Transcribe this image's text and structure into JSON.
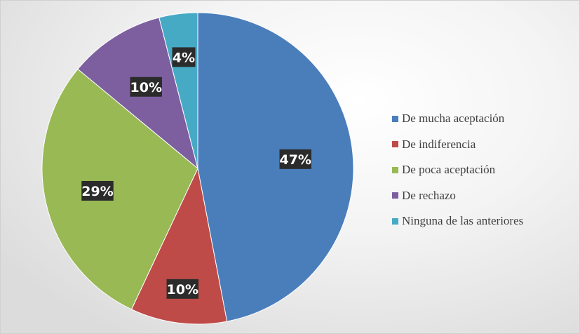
{
  "chart_data": {
    "type": "pie",
    "title": "",
    "categories": [
      "De mucha aceptación",
      "De indiferencia",
      "De poca aceptación",
      "De rechazo",
      "Ninguna de las anteriores"
    ],
    "values": [
      47,
      10,
      29,
      10,
      4
    ],
    "data_labels": [
      "47%",
      "10%",
      "29%",
      "10%",
      "4%"
    ],
    "colors": [
      "#4a7ebb",
      "#be4b48",
      "#98b954",
      "#7d5fa0",
      "#46aac5"
    ],
    "legend_placement": "right",
    "start_angle": "12 o'clock",
    "direction": "clockwise"
  }
}
